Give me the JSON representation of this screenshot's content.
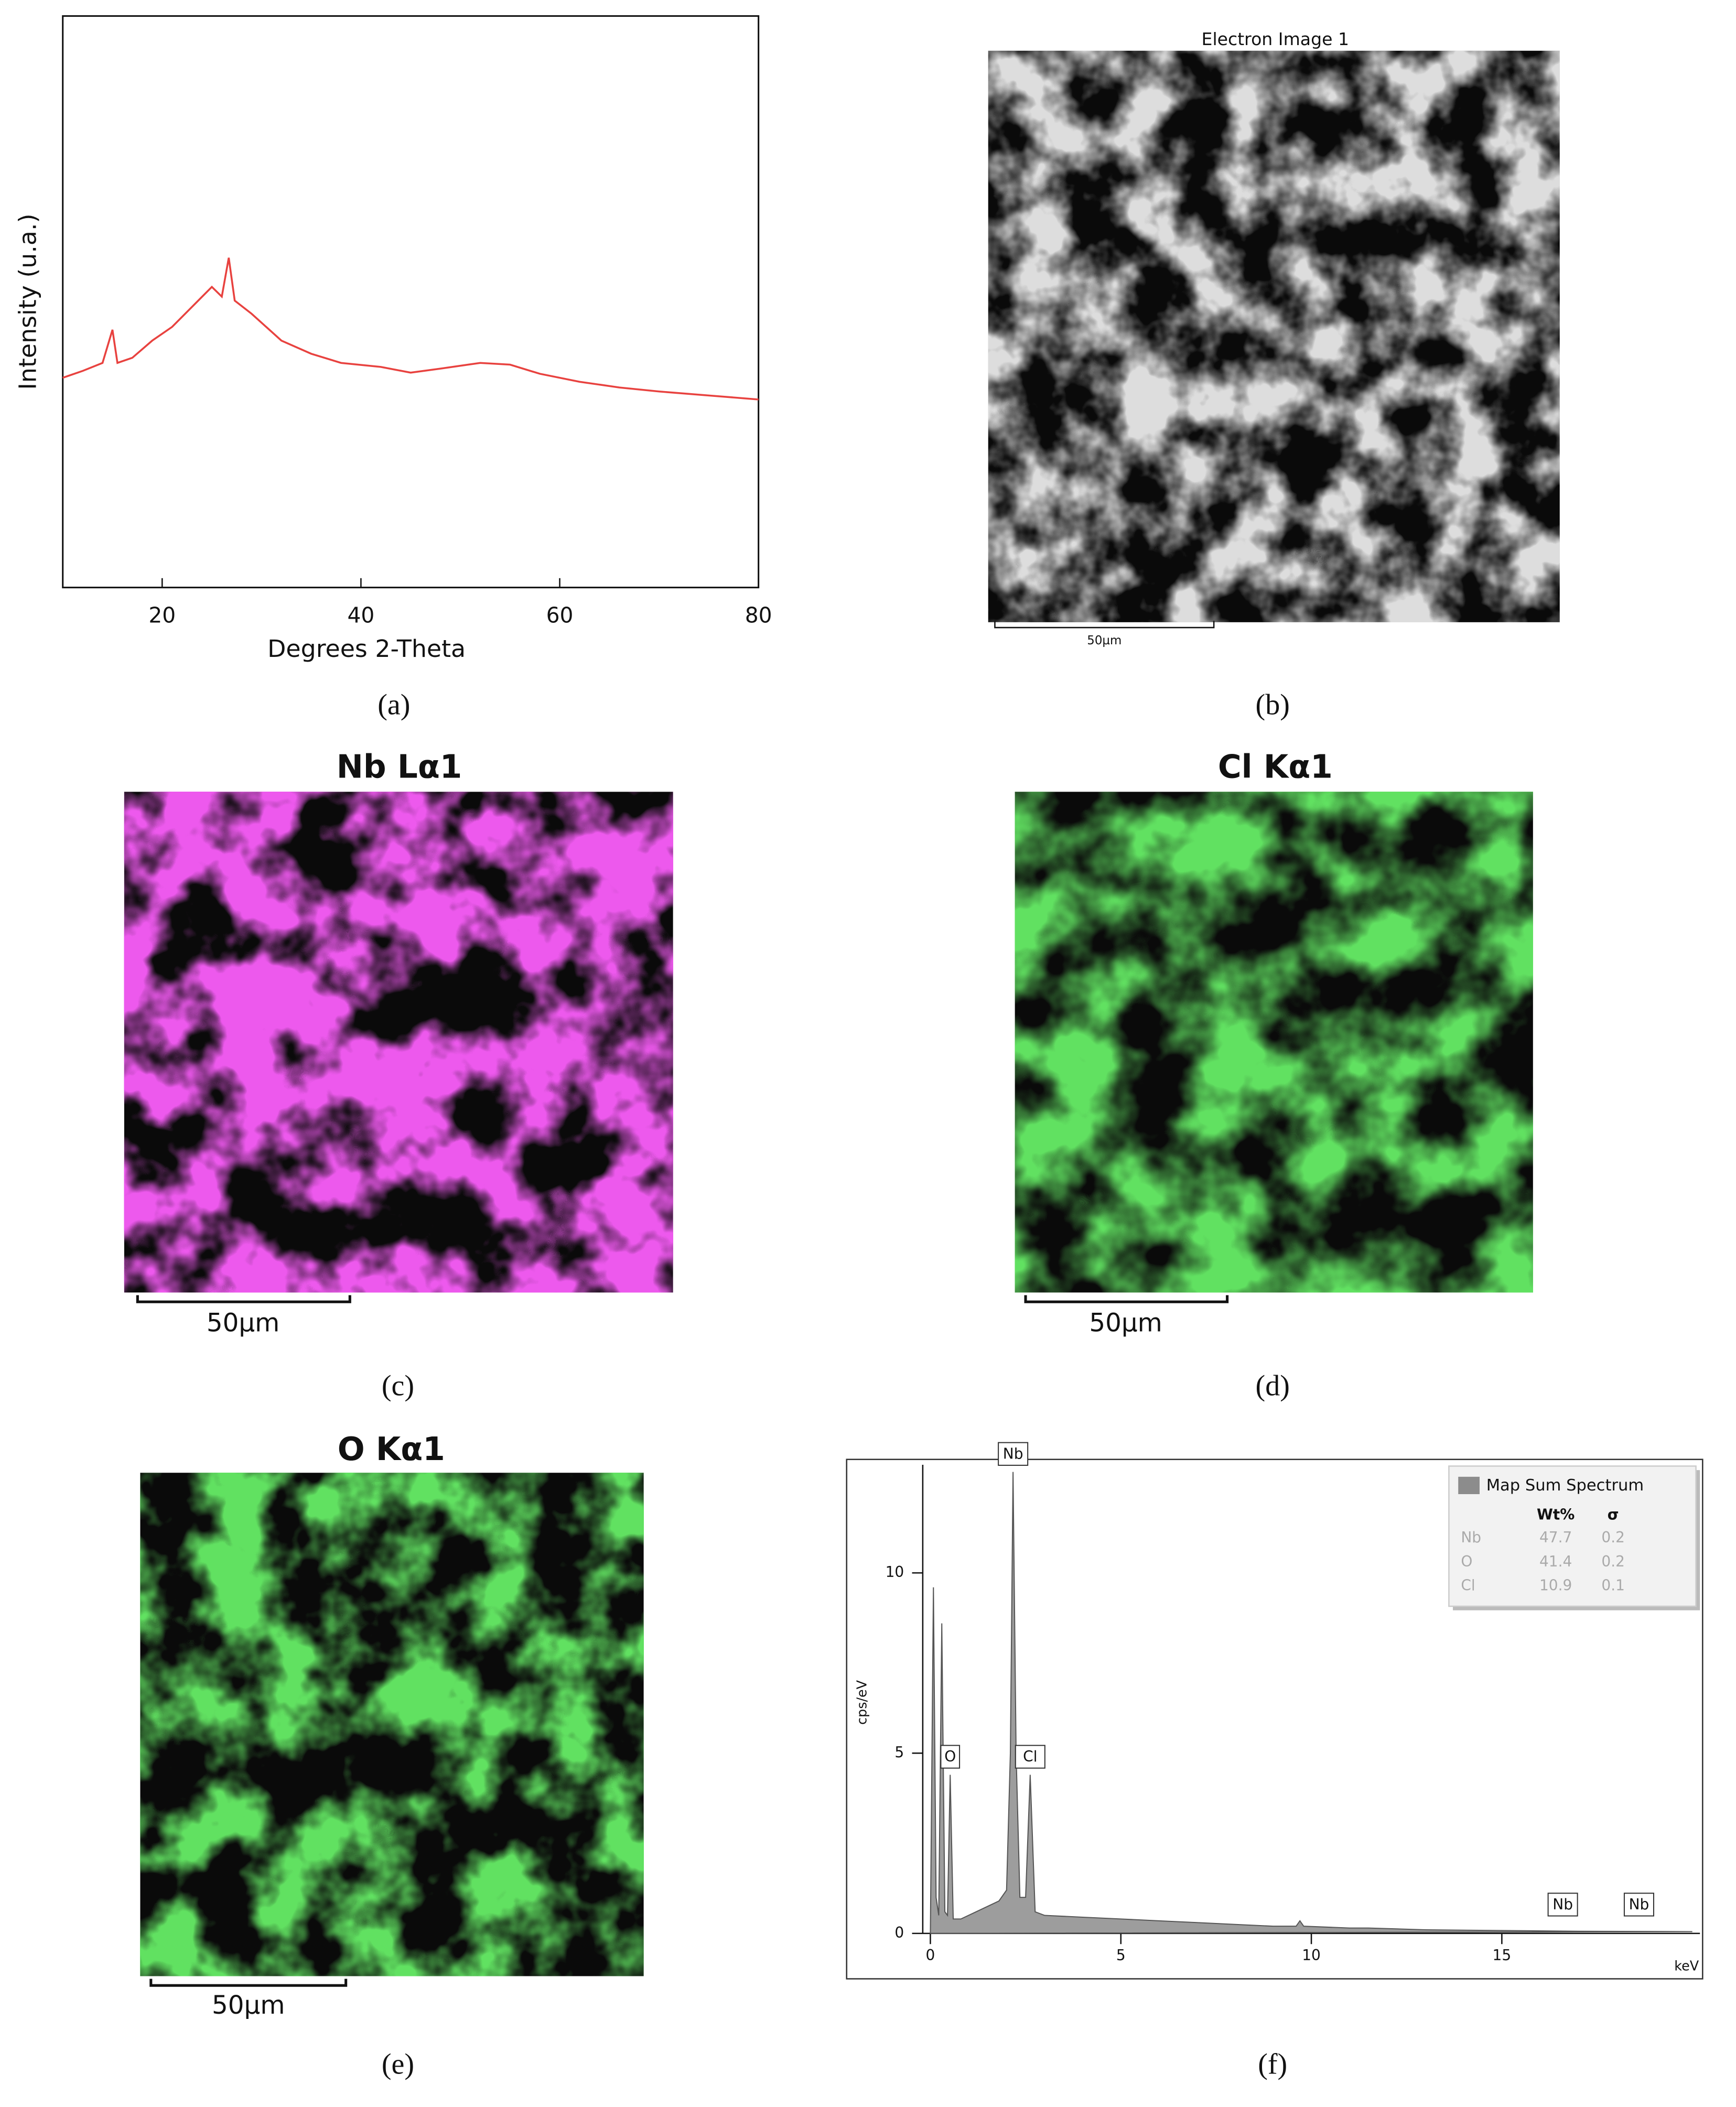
{
  "chart_data": [
    {
      "type": "line",
      "panel_label": "(a)",
      "xlabel": "Degrees 2-Theta",
      "ylabel": "Intensity (u.a.)",
      "x": [
        10,
        12,
        14,
        15,
        15.5,
        17,
        19,
        21,
        23,
        25,
        26,
        26.7,
        27.3,
        29,
        32,
        35,
        38,
        42,
        45,
        48,
        52,
        55,
        58,
        62,
        66,
        70,
        75,
        80
      ],
      "series": [
        {
          "color": "#e8423f",
          "values": [
            36.7,
            37.9,
            39.3,
            45.1,
            39.3,
            40.2,
            43.2,
            45.6,
            49.1,
            52.6,
            50.9,
            57.7,
            50.2,
            47.9,
            43.2,
            40.9,
            39.3,
            38.6,
            37.6,
            38.3,
            39.3,
            39.0,
            37.4,
            36.0,
            35.0,
            34.3,
            33.6,
            32.9
          ]
        }
      ],
      "xlim": [
        10,
        80
      ],
      "xticks": [
        20,
        40,
        60,
        80
      ],
      "ylim": [
        0,
        100
      ]
    },
    {
      "type": "area",
      "panel_label": "(f)",
      "xlabel": "keV",
      "ylabel": "cps/eV",
      "x": [
        0,
        0.08,
        0.15,
        0.22,
        0.3,
        0.38,
        0.45,
        0.52,
        0.6,
        0.8,
        1.2,
        1.8,
        2.0,
        2.1,
        2.17,
        2.25,
        2.35,
        2.5,
        2.62,
        2.75,
        3,
        4,
        5,
        6,
        7,
        8,
        9,
        9.6,
        9.7,
        9.8,
        11,
        11.5,
        13,
        15,
        17,
        20
      ],
      "series": [
        {
          "name": "Map Sum Spectrum",
          "color": "#8c8c8c",
          "values": [
            0,
            9.6,
            1.0,
            0.5,
            8.6,
            0.6,
            0.5,
            4.4,
            0.4,
            0.4,
            0.6,
            0.9,
            1.2,
            5,
            12.8,
            5,
            1.0,
            1.0,
            4.4,
            0.6,
            0.5,
            0.45,
            0.4,
            0.35,
            0.3,
            0.25,
            0.2,
            0.2,
            0.35,
            0.2,
            0.15,
            0.15,
            0.1,
            0.08,
            0.06,
            0.05
          ]
        }
      ],
      "xlim": [
        -0.2,
        20.2
      ],
      "xticks": [
        0,
        5,
        10,
        15
      ],
      "ylim": [
        0,
        13
      ],
      "yticks": [
        0,
        5,
        10
      ],
      "annotations": [
        {
          "text": "Nb",
          "x": 2.17,
          "y": 12.8
        },
        {
          "text": "O",
          "x": 0.52,
          "y": 4.4
        },
        {
          "text": "Cl",
          "x": 2.62,
          "y": 4.4
        },
        {
          "text": "Nb",
          "x": 16.6,
          "y": 0.3
        },
        {
          "text": "Nb",
          "x": 18.6,
          "y": 0.3
        }
      ],
      "legend_table": {
        "columns": [
          "Wt%",
          "σ"
        ],
        "rows": [
          [
            "Nb",
            47.7,
            0.2
          ],
          [
            "O",
            41.4,
            0.2
          ],
          [
            "Cl",
            10.9,
            0.1
          ]
        ]
      }
    }
  ],
  "images": [
    {
      "title": "Electron Image 1",
      "scale_bar": "50µm",
      "panel_label": "(b)"
    },
    {
      "title": "Nb Lα1",
      "scale_bar": "50µm",
      "panel_label": "(c)"
    },
    {
      "title": "Cl Kα1",
      "scale_bar": "50µm",
      "panel_label": "(d)"
    },
    {
      "title": "O Kα1",
      "scale_bar": "50µm",
      "panel_label": "(e)"
    }
  ]
}
